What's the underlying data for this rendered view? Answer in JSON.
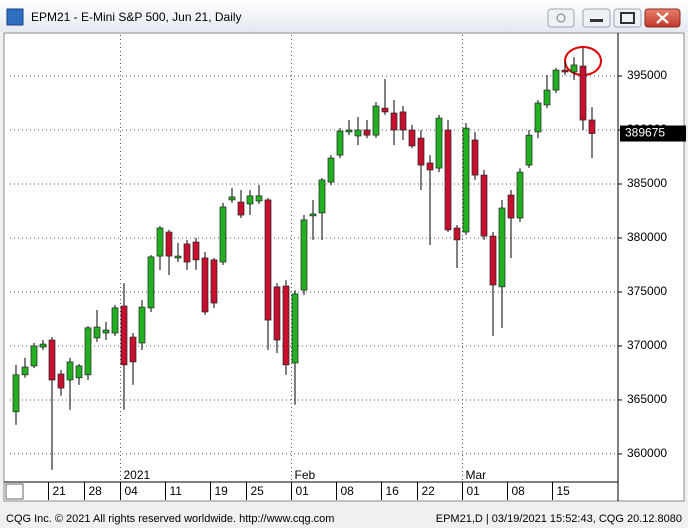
{
  "chart_data": {
    "type": "candlestick",
    "title": "EPM21 - E-Mini S&P 500, Jun 21, Daily",
    "categories": [
      null,
      null,
      null,
      null,
      "21",
      null,
      null,
      null,
      "28",
      null,
      null,
      null,
      "04",
      null,
      null,
      null,
      null,
      "11",
      null,
      null,
      null,
      null,
      "19",
      null,
      null,
      null,
      "25",
      null,
      null,
      null,
      null,
      "01",
      null,
      null,
      null,
      null,
      "08",
      null,
      null,
      null,
      null,
      "16",
      null,
      null,
      null,
      "22",
      null,
      null,
      null,
      null,
      "01",
      null,
      null,
      null,
      null,
      "08",
      null,
      null,
      null,
      null,
      "15",
      null,
      null,
      null,
      null
    ],
    "periods": [
      null,
      null,
      null,
      null,
      null,
      null,
      null,
      null,
      null,
      null,
      null,
      null,
      "2021",
      null,
      null,
      null,
      null,
      null,
      null,
      null,
      null,
      null,
      null,
      null,
      null,
      null,
      null,
      null,
      null,
      null,
      null,
      "Feb",
      null,
      null,
      null,
      null,
      null,
      null,
      null,
      null,
      null,
      null,
      null,
      null,
      null,
      null,
      null,
      null,
      null,
      null,
      "Mar",
      null,
      null,
      null,
      null,
      null,
      null,
      null,
      null,
      null,
      null,
      null,
      null,
      null,
      null
    ],
    "open": [
      363900,
      367325,
      368150,
      369900,
      370550,
      367400,
      366850,
      367050,
      367325,
      370750,
      371200,
      371200,
      373700,
      370825,
      370275,
      373525,
      378325,
      380550,
      378150,
      379450,
      379625,
      378150,
      377975,
      377775,
      383525,
      383325,
      383150,
      383425,
      383525,
      375475,
      375550,
      368425,
      375175,
      382050,
      382325,
      385175,
      387675,
      389825,
      389450,
      390000,
      389525,
      392025,
      391575,
      391675,
      390000,
      389250,
      386950,
      386475,
      390000,
      380925,
      380550,
      389075,
      385825,
      380175,
      375475,
      383975,
      381850,
      386750,
      389825,
      392325,
      393700,
      395550,
      395375,
      395925,
      390925
    ],
    "high": [
      368250,
      368900,
      370275,
      370550,
      370825,
      367775,
      368900,
      368325,
      371850,
      373325,
      372225,
      373800,
      375825,
      371200,
      374250,
      378425,
      381100,
      380750,
      379550,
      379825,
      380000,
      378700,
      378150,
      383250,
      384625,
      384450,
      384450,
      384900,
      383700,
      375825,
      376100,
      375175,
      382125,
      383525,
      385550,
      387675,
      390175,
      390925,
      391200,
      390925,
      392600,
      394725,
      392775,
      392225,
      390475,
      390000,
      387675,
      391400,
      390925,
      381200,
      390650,
      389825,
      386300,
      380550,
      383525,
      384450,
      386475,
      390000,
      392775,
      395100,
      395750,
      396300,
      396750,
      397600,
      392125
    ],
    "low": [
      362700,
      367050,
      367950,
      369625,
      358525,
      365375,
      364075,
      366400,
      366850,
      370375,
      370550,
      370925,
      364075,
      366400,
      369625,
      373150,
      377050,
      376575,
      377775,
      377050,
      377050,
      372875,
      373525,
      377500,
      383250,
      381850,
      382125,
      383150,
      369625,
      369350,
      367325,
      364550,
      374725,
      379825,
      379825,
      384900,
      387400,
      389525,
      388600,
      389250,
      389250,
      391400,
      388600,
      389075,
      388325,
      384450,
      379350,
      386100,
      380550,
      377225,
      380275,
      385375,
      379825,
      370925,
      371675,
      378150,
      381475,
      386475,
      389250,
      392025,
      393425,
      395100,
      394625,
      390000,
      387400
    ],
    "close": [
      367325,
      368050,
      370000,
      370175,
      366850,
      366100,
      368525,
      368150,
      371675,
      371750,
      371475,
      373525,
      368250,
      368525,
      373600,
      378250,
      380925,
      378325,
      378325,
      377775,
      377975,
      373150,
      373975,
      382875,
      383800,
      382125,
      383900,
      383900,
      372400,
      370550,
      368250,
      374825,
      381675,
      382225,
      385375,
      387400,
      389900,
      390000,
      390000,
      389525,
      392225,
      391675,
      390000,
      390000,
      388525,
      386750,
      386300,
      391100,
      380750,
      379825,
      390175,
      385825,
      380175,
      375650,
      382775,
      381850,
      386100,
      389525,
      392500,
      393700,
      395550,
      395375,
      396025,
      390925,
      389675
    ],
    "up_color": "#22b022",
    "down_color": "#c8102e",
    "ylim": [
      357400,
      398800
    ],
    "yticks": [
      360000,
      365000,
      370000,
      375000,
      380000,
      385000,
      390000,
      395000
    ],
    "grid": true,
    "footer": {
      "left": "CQG Inc. © 2021 All rights reserved worldwide. http://www.cqg.com",
      "right": "EPM21,D | 03/19/2021 15:52:43, CQG 20.12.8080"
    }
  }
}
